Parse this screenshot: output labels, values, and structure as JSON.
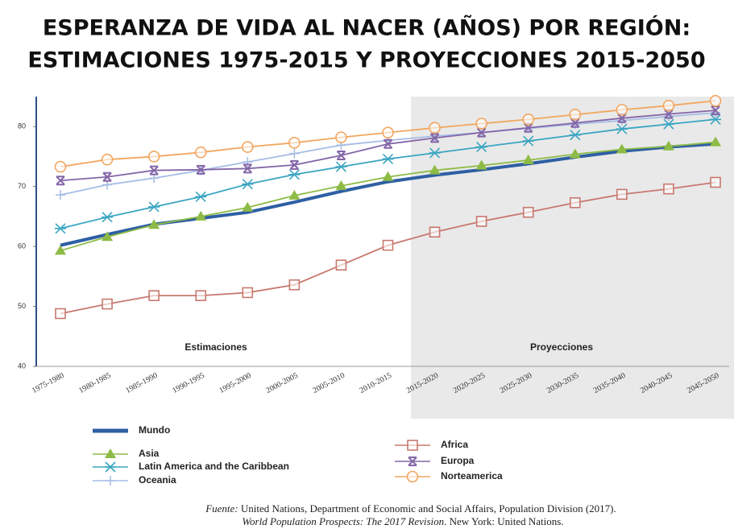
{
  "chart_data": {
    "type": "line",
    "title": [
      "ESPERANZA DE VIDA AL NACER (AÑOS) POR REGIÓN:",
      "ESTIMACIONES 1975-2015 Y PROYECCIONES 2015-2050"
    ],
    "categories": [
      "1975-1980",
      "1980-1985",
      "1985-1990",
      "1990-1995",
      "1995-2000",
      "2000-2005",
      "2005-2010",
      "2010-2015",
      "2015-2020",
      "2020-2025",
      "2025-2030",
      "2030-2035",
      "2035-2040",
      "2040-2045",
      "2045-2050"
    ],
    "ylim": [
      40,
      85
    ],
    "yticks": [
      40,
      50,
      60,
      70,
      80
    ],
    "annotations": [
      "Estimaciones",
      "Proyecciones"
    ],
    "series": [
      {
        "name": "Mundo",
        "color": "#2e5fa3",
        "marker": "none",
        "values": [
          60.2,
          62,
          63.7,
          64.7,
          65.7,
          67.4,
          69.2,
          70.8,
          71.9,
          72.8,
          73.8,
          74.9,
          75.9,
          76.6,
          77.1
        ]
      },
      {
        "name": "Asia",
        "color": "#8dbb46",
        "marker": "triangle",
        "values": [
          59.3,
          61.6,
          63.6,
          65.0,
          66.5,
          68.5,
          70.1,
          71.6,
          72.7,
          73.5,
          74.4,
          75.4,
          76.2,
          76.7,
          77.4
        ]
      },
      {
        "name": "Latin America and the Caribbean",
        "color": "#3aa5c2",
        "marker": "asterisk",
        "values": [
          63.0,
          64.9,
          66.6,
          68.3,
          70.4,
          72.0,
          73.3,
          74.6,
          75.6,
          76.6,
          77.6,
          78.6,
          79.6,
          80.4,
          81.2
        ]
      },
      {
        "name": "Oceania",
        "color": "#a7bde6",
        "marker": "plus",
        "values": [
          68.6,
          70.3,
          71.4,
          72.7,
          74.1,
          75.5,
          76.9,
          77.7,
          78.4,
          79.0,
          79.7,
          80.4,
          81.0,
          81.7,
          82.3
        ]
      },
      {
        "name": "Africa",
        "color": "#c8786f",
        "marker": "square",
        "values": [
          48.8,
          50.4,
          51.8,
          51.8,
          52.3,
          53.6,
          56.9,
          60.2,
          62.4,
          64.2,
          65.7,
          67.3,
          68.7,
          69.6,
          70.7
        ]
      },
      {
        "name": "Europa",
        "color": "#8466a8",
        "marker": "star",
        "values": [
          71.0,
          71.6,
          72.7,
          72.8,
          73.0,
          73.6,
          75.2,
          77.1,
          78.1,
          79.0,
          79.8,
          80.6,
          81.4,
          82.1,
          82.7
        ]
      },
      {
        "name": "Norteamerica",
        "color": "#f2a65e",
        "marker": "circle",
        "values": [
          73.3,
          74.5,
          75.0,
          75.7,
          76.6,
          77.3,
          78.2,
          79.0,
          79.8,
          80.5,
          81.2,
          82.0,
          82.8,
          83.5,
          84.3
        ]
      }
    ],
    "source": [
      [
        "Fuente:",
        " United Nations, Department of Economic and Social Affairs, Population Division (2017)."
      ],
      [
        "World Population Prospects: The 2017 Revision",
        ". New York: United Nations."
      ]
    ]
  }
}
